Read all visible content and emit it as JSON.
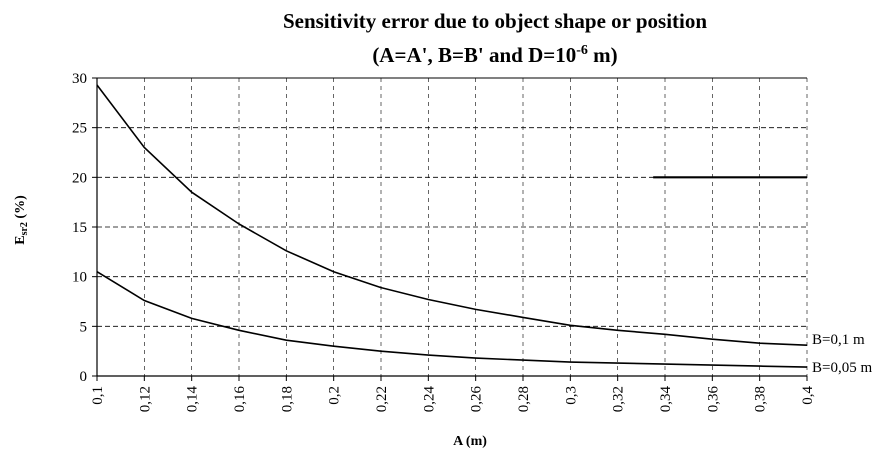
{
  "chart_data": {
    "type": "line",
    "title": "Sensitivity error due to object shape or position",
    "subtitle_pre": "(A=A', B=B' and D=10",
    "subtitle_sup": "-6",
    "subtitle_post": " m)",
    "xlabel": "A (m)",
    "ylabel_main": "E",
    "ylabel_sub": "sr2",
    "ylabel_rest": " (%)",
    "x": [
      0.1,
      0.12,
      0.14,
      0.16,
      0.18,
      0.2,
      0.22,
      0.24,
      0.26,
      0.28,
      0.3,
      0.32,
      0.34,
      0.36,
      0.38,
      0.4
    ],
    "x_tick_labels": [
      "0,1",
      "0,12",
      "0,14",
      "0,16",
      "0,18",
      "0,2",
      "0,22",
      "0,24",
      "0,26",
      "0,28",
      "0,3",
      "0,32",
      "0,34",
      "0,36",
      "0,38",
      "0,4"
    ],
    "y_ticks": [
      0,
      5,
      10,
      15,
      20,
      25,
      30
    ],
    "ylim": [
      0,
      30
    ],
    "xlim": [
      0.1,
      0.4
    ],
    "grid": true,
    "series": [
      {
        "name": "B=0,1 m",
        "values": [
          29.3,
          23.0,
          18.5,
          15.3,
          12.6,
          10.5,
          8.9,
          7.7,
          6.7,
          5.9,
          5.1,
          4.6,
          4.2,
          3.7,
          3.3,
          3.1
        ]
      },
      {
        "name": "B=0,05 m",
        "values": [
          10.5,
          7.6,
          5.8,
          4.6,
          3.6,
          3.0,
          2.5,
          2.1,
          1.8,
          1.6,
          1.4,
          1.3,
          1.2,
          1.1,
          1.0,
          0.9
        ]
      }
    ],
    "reference_segment": {
      "x": [
        0.335,
        0.4
      ],
      "y": 20
    }
  }
}
